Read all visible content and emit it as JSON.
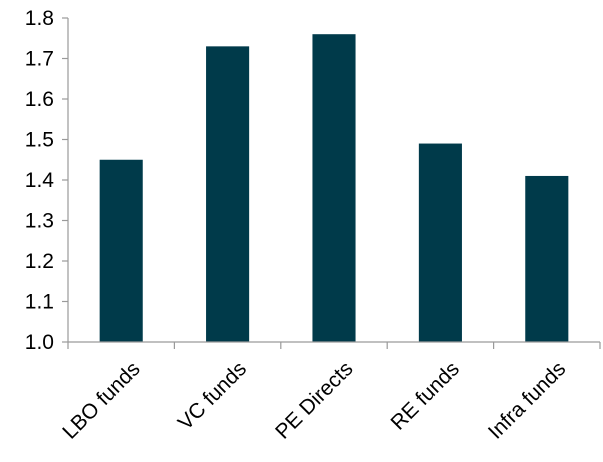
{
  "chart_data": {
    "type": "bar",
    "title": "",
    "xlabel": "",
    "ylabel": "",
    "categories": [
      "LBO funds",
      "VC funds",
      "PE Directs",
      "RE funds",
      "Infra funds"
    ],
    "values": [
      1.45,
      1.73,
      1.76,
      1.49,
      1.41
    ],
    "ylim": [
      1.0,
      1.8
    ],
    "yticks": [
      "1.0",
      "1.1",
      "1.2",
      "1.3",
      "1.4",
      "1.5",
      "1.6",
      "1.7",
      "1.8"
    ],
    "grid": false,
    "legend": "none",
    "bar_color": "#003a4a",
    "axis_color": "#9a9a9a"
  }
}
